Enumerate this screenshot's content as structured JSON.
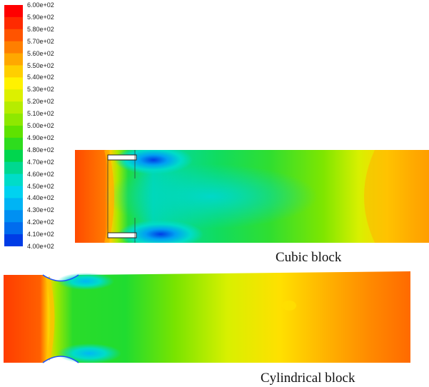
{
  "legend": {
    "tick_labels": [
      "6.00e+02",
      "5.90e+02",
      "5.80e+02",
      "5.70e+02",
      "5.60e+02",
      "5.50e+02",
      "5.40e+02",
      "5.30e+02",
      "5.20e+02",
      "5.10e+02",
      "5.00e+02",
      "4.90e+02",
      "4.80e+02",
      "4.70e+02",
      "4.60e+02",
      "4.50e+02",
      "4.40e+02",
      "4.30e+02",
      "4.20e+02",
      "4.10e+02",
      "4.00e+02"
    ],
    "band_colors": [
      "#ff0000",
      "#ff2a00",
      "#ff5400",
      "#ff7f00",
      "#ffa800",
      "#ffcf00",
      "#fff200",
      "#dcf000",
      "#b6ec00",
      "#8ee800",
      "#5fe200",
      "#2edc1e",
      "#00d64e",
      "#00d890",
      "#00dcc8",
      "#00d2f0",
      "#00b4f4",
      "#0090f2",
      "#006cee",
      "#003ce6"
    ],
    "min": 400,
    "max": 600
  },
  "captions": {
    "cubic": "Cubic block",
    "cylindrical": "Cylindrical block"
  }
}
